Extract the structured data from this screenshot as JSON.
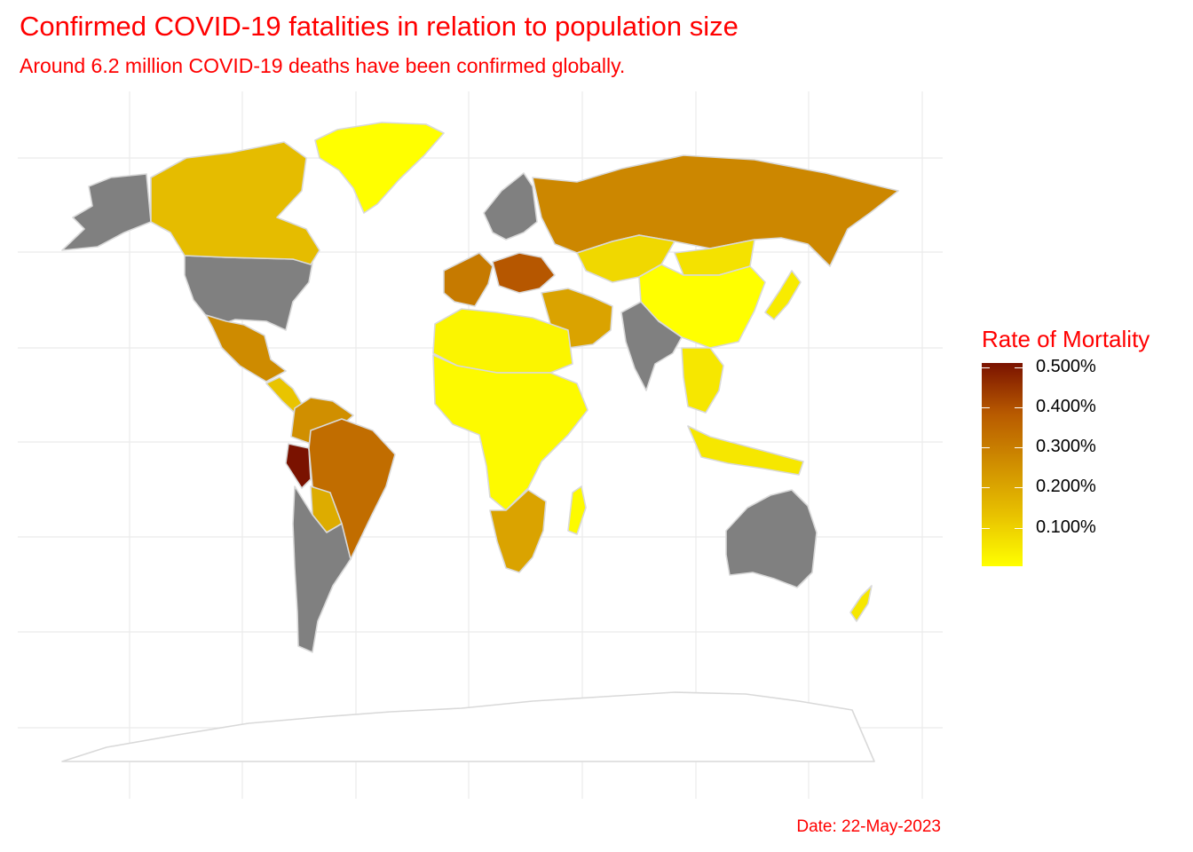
{
  "title": "Confirmed COVID-19 fatalities in relation to population size",
  "subtitle": "Around 6.2 million COVID-19 deaths have been confirmed globally.",
  "caption": "Date: 22-May-2023",
  "legend": {
    "title": "Rate of Mortality",
    "labels": [
      "0.500%",
      "0.400%",
      "0.300%",
      "0.200%",
      "0.100%"
    ],
    "gradient_colors": [
      "#7a1200",
      "#b85a00",
      "#d08f00",
      "#e8c200",
      "#ffff00"
    ],
    "no_data_color": "#808080",
    "border_color": "#d9d9d9"
  },
  "chart_data": {
    "type": "choropleth",
    "projection": "world map",
    "variable": "COVID-19 deaths per population (%)",
    "scale_range": [
      0,
      0.5
    ],
    "gridlines": true,
    "legend_position": "right",
    "regions": [
      {
        "region": "Alaska / USA",
        "status": "no data"
      },
      {
        "region": "United States",
        "status": "no data"
      },
      {
        "region": "Canada",
        "value": 0.14
      },
      {
        "region": "Greenland",
        "value": 0.0
      },
      {
        "region": "Mexico",
        "value": 0.26
      },
      {
        "region": "Central America",
        "value": 0.12
      },
      {
        "region": "Colombia / Venezuela",
        "value": 0.25
      },
      {
        "region": "Peru",
        "value": 0.5
      },
      {
        "region": "Brazil",
        "value": 0.33
      },
      {
        "region": "Bolivia / Paraguay",
        "value": 0.18
      },
      {
        "region": "Chile / Argentina",
        "status": "no data"
      },
      {
        "region": "Russia",
        "value": 0.27
      },
      {
        "region": "Scandinavia",
        "status": "no data"
      },
      {
        "region": "Western Europe",
        "value": 0.3
      },
      {
        "region": "Eastern Europe",
        "value": 0.38
      },
      {
        "region": "Kazakhstan",
        "value": 0.08
      },
      {
        "region": "Mongolia",
        "value": 0.06
      },
      {
        "region": "China",
        "value": 0.0
      },
      {
        "region": "India",
        "status": "no data"
      },
      {
        "region": "Middle East",
        "value": 0.2
      },
      {
        "region": "North Africa",
        "value": 0.02
      },
      {
        "region": "Sub-Saharan Africa",
        "value": 0.01
      },
      {
        "region": "Southern Africa",
        "value": 0.2
      },
      {
        "region": "Madagascar",
        "value": 0.01
      },
      {
        "region": "Southeast Asia",
        "value": 0.05
      },
      {
        "region": "Indonesia",
        "value": 0.05
      },
      {
        "region": "Japan",
        "value": 0.04
      },
      {
        "region": "Australia",
        "status": "no data"
      },
      {
        "region": "New Zealand",
        "value": 0.05
      },
      {
        "region": "Antarctica",
        "status": "no data"
      }
    ]
  }
}
